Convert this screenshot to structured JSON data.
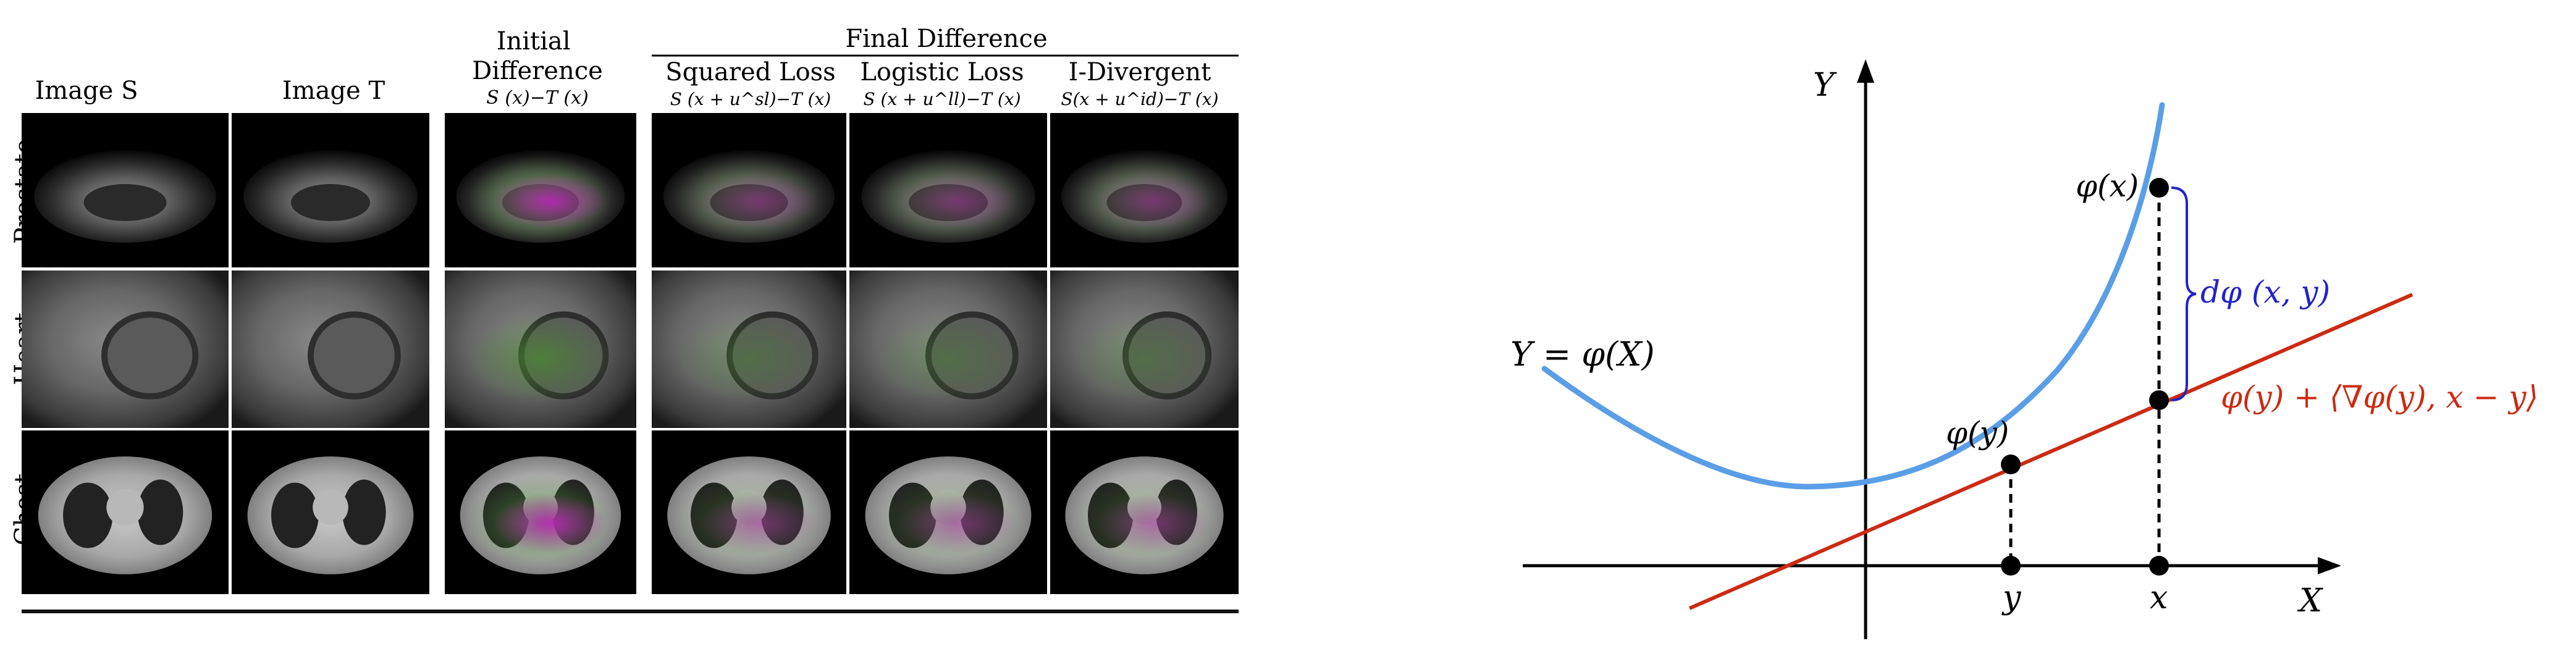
{
  "left_panel": {
    "group_header": "Final Difference",
    "columns": [
      {
        "title": "Image S",
        "formula": ""
      },
      {
        "title": "Image T",
        "formula": ""
      },
      {
        "title": "Initial\nDifference",
        "formula": "S (x)−T (x)"
      },
      {
        "title": "Squared Loss",
        "formula": "S (x + u^sl)−T (x)"
      },
      {
        "title": "Logistic Loss",
        "formula": "S (x + u^ll)−T (x)"
      },
      {
        "title": "I-Divergent",
        "formula": "S(x + u^id)−T (x)"
      }
    ],
    "rows": [
      "Prostate",
      "Heart",
      "Chest"
    ]
  },
  "right_panel": {
    "axis_x": "X",
    "axis_y": "Y",
    "curve_label": "Y = φ(X)",
    "point_phi_y": "φ(y)",
    "point_phi_x": "φ(x)",
    "tick_y": "y",
    "tick_x": "x",
    "divergence_label": "dφ (x, y)",
    "tangent_label": "φ(y) + ⟨∇φ(y), x − y⟩",
    "colors": {
      "curve": "#5a9ee6",
      "tangent": "#cc2a12",
      "brace": "#2222cc",
      "axis": "#000000"
    }
  }
}
